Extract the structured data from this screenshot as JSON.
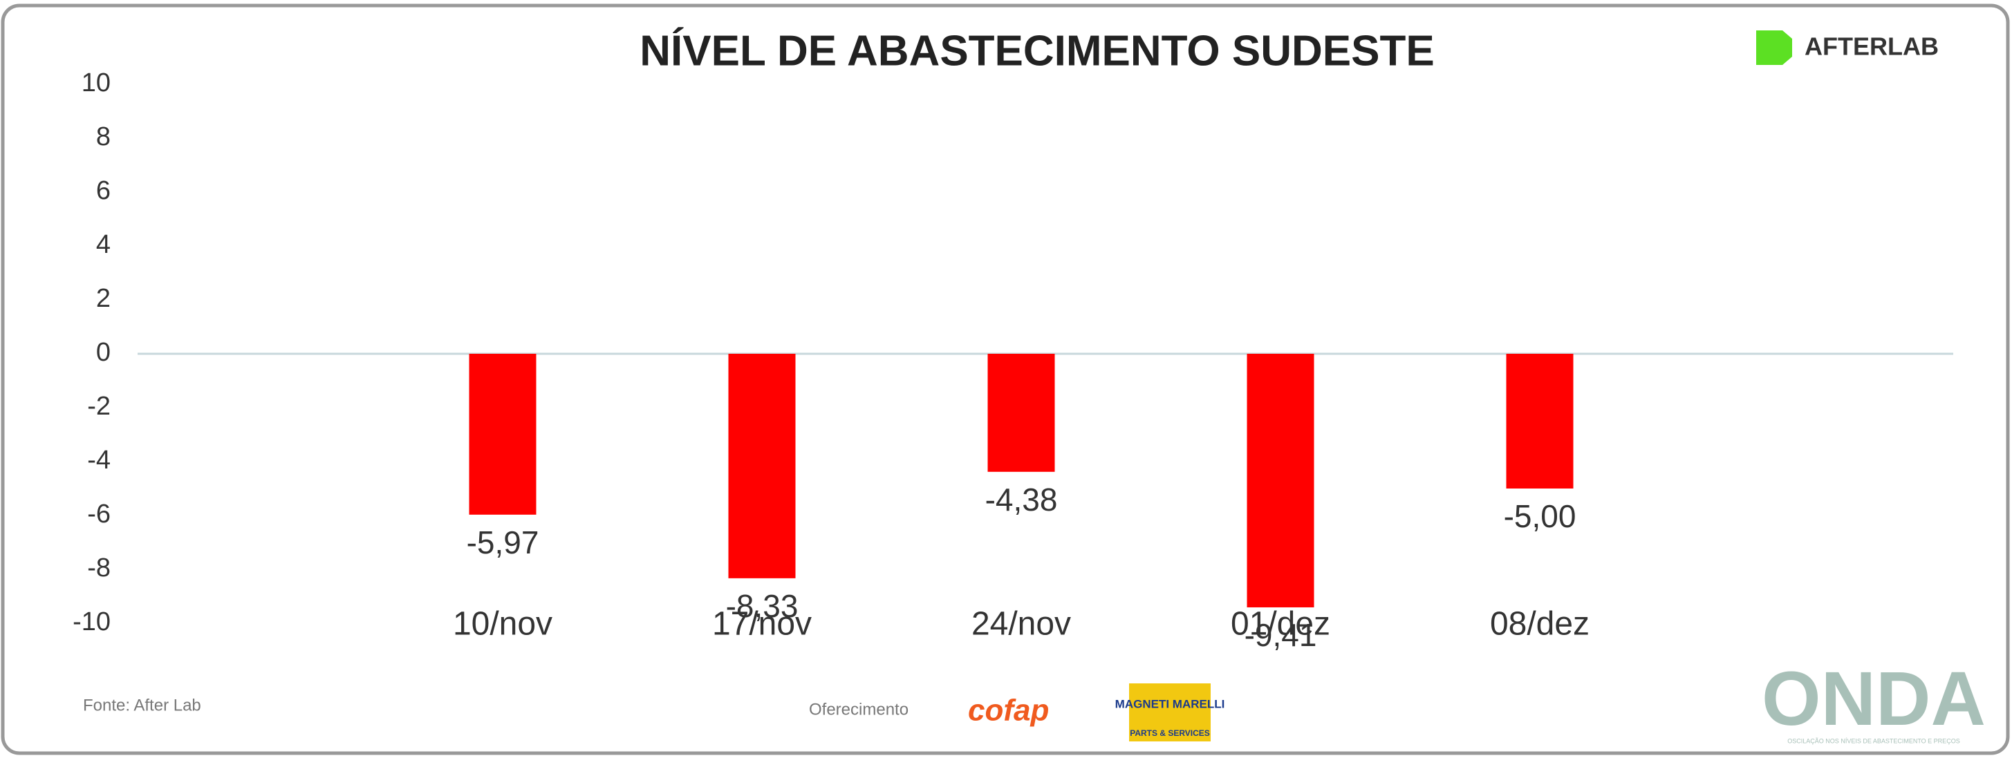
{
  "chart_data": {
    "type": "bar",
    "title": "NÍVEL DE ABASTECIMENTO SUDESTE",
    "categories": [
      "10/nov",
      "17/nov",
      "24/nov",
      "01/dez",
      "08/dez"
    ],
    "values": [
      -5.97,
      -8.33,
      -4.38,
      -9.41,
      -5.0
    ],
    "value_labels": [
      "-5,97",
      "-8,33",
      "-4,38",
      "-9,41",
      "-5,00"
    ],
    "color": "#ff0000",
    "ylim": [
      -10,
      10
    ],
    "yticks": [
      -10,
      -8,
      -6,
      -4,
      -2,
      0,
      2,
      4,
      6,
      8,
      10
    ]
  },
  "brand": "AFTERLAB",
  "footer": {
    "source": "Fonte: After Lab",
    "sponsor": "Oferecimento",
    "sponsor1": "cofap",
    "sponsor2": "MAGNETI MARELLI",
    "sponsor2_sub": "PARTS & SERVICES",
    "logo": "ONDA",
    "logo_sub": "OSCILAÇÃO NOS NÍVEIS DE ABASTECIMENTO E PREÇOS"
  }
}
